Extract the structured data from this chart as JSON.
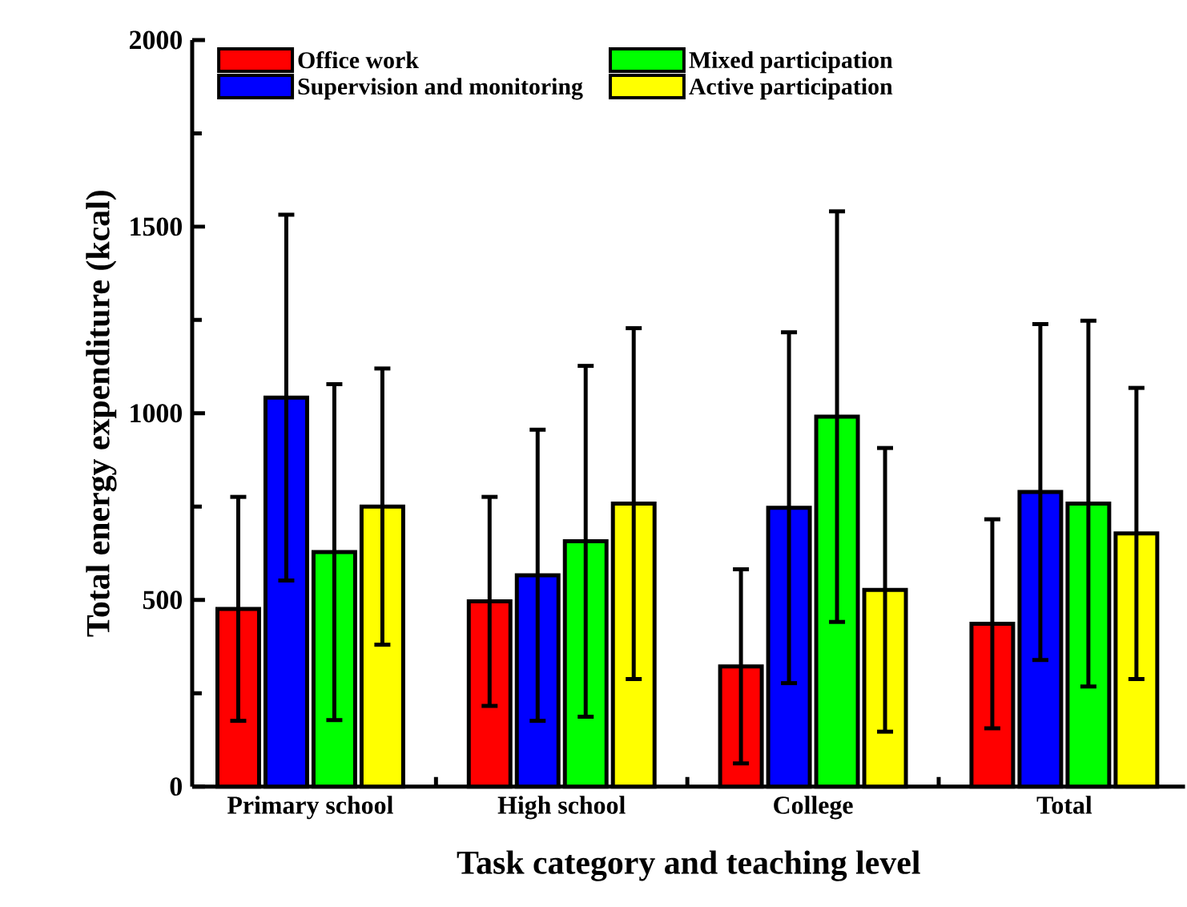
{
  "chart_data": {
    "type": "bar",
    "xlabel": "Task category and teaching level",
    "ylabel": "Total energy expenditure (kcal)",
    "categories": [
      "Primary school",
      "High school",
      "College",
      "Total"
    ],
    "series": [
      {
        "name": "Office work",
        "color": "#ff0000",
        "values": [
          476,
          496,
          322,
          436
        ],
        "errors": [
          300,
          280,
          260,
          280
        ]
      },
      {
        "name": "Supervision and monitoring",
        "color": "#0000ff",
        "values": [
          1042,
          566,
          747,
          789
        ],
        "errors": [
          490,
          390,
          470,
          450
        ]
      },
      {
        "name": "Mixed participation",
        "color": "#00ff00",
        "values": [
          628,
          657,
          991,
          758
        ],
        "errors": [
          450,
          470,
          550,
          490
        ]
      },
      {
        "name": "Active participation",
        "color": "#ffff00",
        "values": [
          750,
          758,
          527,
          678
        ],
        "errors": [
          370,
          470,
          380,
          390
        ]
      }
    ],
    "ylim": [
      0,
      2000
    ],
    "yticks": [
      0,
      500,
      1000,
      1500,
      2000
    ],
    "grid": false,
    "legend": "top"
  }
}
